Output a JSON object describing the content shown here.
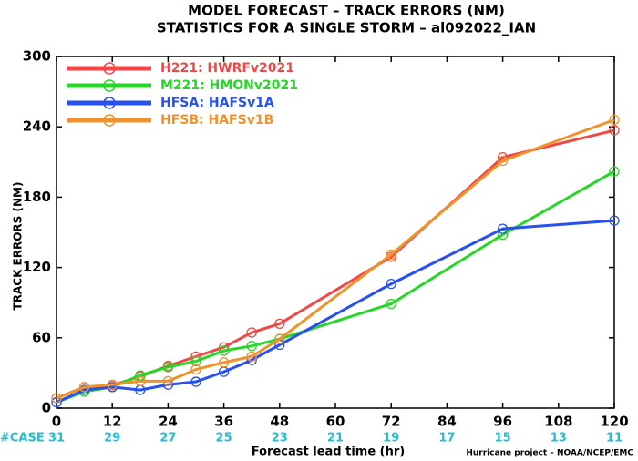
{
  "chart_data": {
    "type": "line",
    "title": "MODEL FORECAST – TRACK ERRORS (NM)",
    "subtitle": "STATISTICS FOR A SINGLE STORM – al092022_IAN",
    "x_label": "Forecast lead time (hr)",
    "y_label": "TRACK ERRORS (NM)",
    "footer": "Hurricane project – NOAA/NCEP/EMC",
    "x": [
      0,
      6,
      12,
      18,
      24,
      30,
      36,
      42,
      48,
      72,
      96,
      120
    ],
    "series": [
      {
        "name": "H221:  HWRFv2021",
        "color": "#f04848",
        "values": [
          8.5,
          18,
          19.5,
          27,
          36,
          44,
          52,
          64.5,
          72,
          129,
          214,
          237
        ]
      },
      {
        "name": "M221:  HMONv2021",
        "color": "#28d628",
        "values": [
          5,
          14,
          18,
          28,
          35,
          40,
          49,
          53,
          59,
          89,
          148,
          202
        ]
      },
      {
        "name": "HFSA:  HAFSv1A",
        "color": "#2850f0",
        "values": [
          5,
          15.5,
          18,
          15.5,
          20,
          22.5,
          31,
          41,
          54,
          106,
          153,
          160
        ]
      },
      {
        "name": "HFSB:  HAFSv1B",
        "color": "#f0922c",
        "values": [
          8.5,
          18,
          20,
          23,
          23,
          33,
          39,
          44,
          59,
          131,
          211,
          246
        ]
      }
    ],
    "xlim": [
      0,
      120
    ],
    "xticks": [
      0,
      12,
      24,
      36,
      48,
      60,
      72,
      84,
      96,
      108,
      120
    ],
    "ylim": [
      0,
      300
    ],
    "yticks": [
      0,
      60,
      120,
      180,
      240,
      300
    ],
    "case_label": "#CASE",
    "case_counts": [
      31,
      29,
      27,
      25,
      23,
      21,
      19,
      17,
      15,
      13,
      11
    ],
    "case_color": "#20c0d0"
  }
}
